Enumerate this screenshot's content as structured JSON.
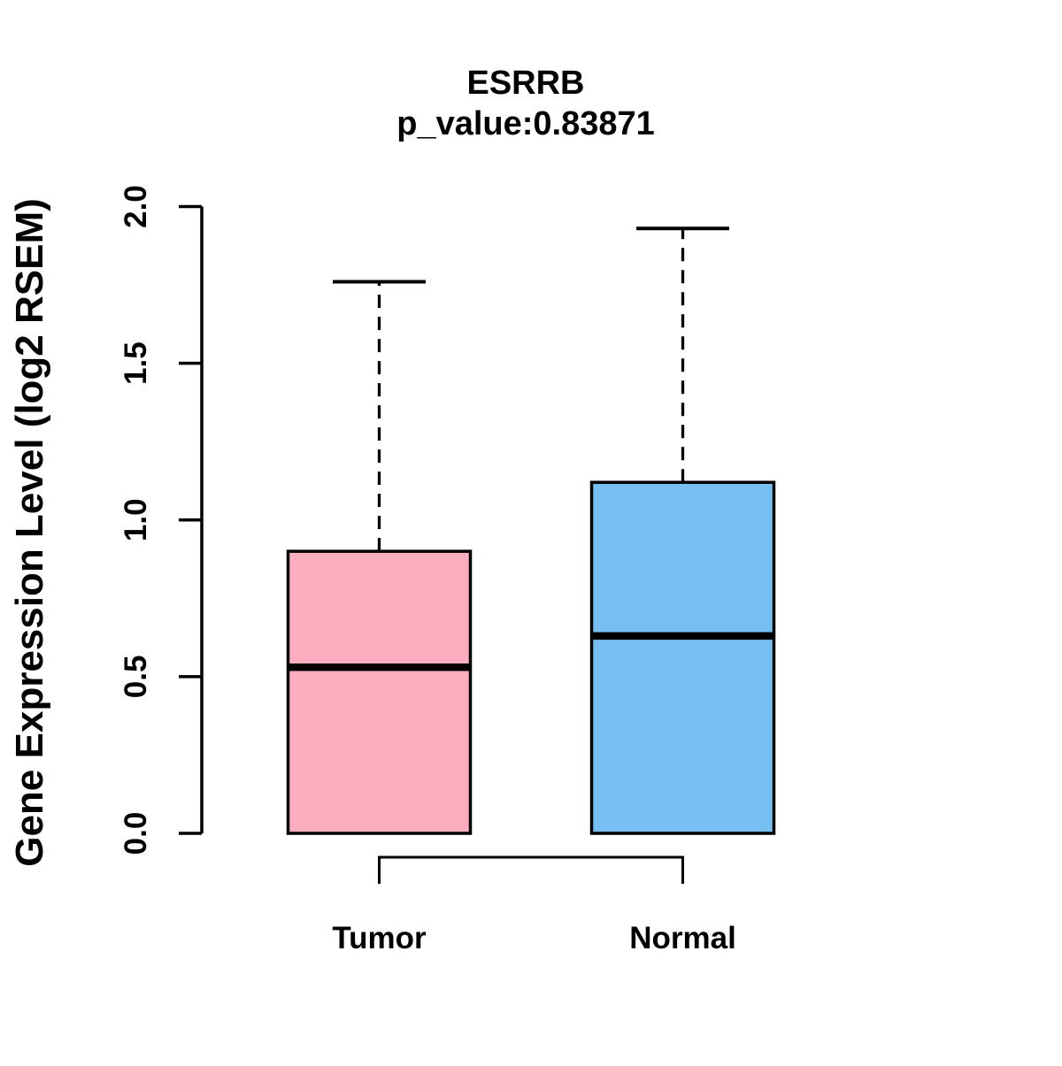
{
  "chart_data": {
    "type": "boxplot",
    "title": "ESRRB",
    "subtitle": "p_value:0.83871",
    "ylabel": "Gene Expression Level (log2 RSEM)",
    "xlabel": "",
    "ylim": [
      0.0,
      2.0
    ],
    "ytick_labels": [
      "0.0",
      "0.5",
      "1.0",
      "1.5",
      "2.0"
    ],
    "ytick_values": [
      0.0,
      0.5,
      1.0,
      1.5,
      2.0
    ],
    "grid": "off",
    "legend": "none",
    "categories": [
      "Tumor",
      "Normal"
    ],
    "series": [
      {
        "name": "Tumor",
        "lower_whisker": 0.0,
        "q1": 0.0,
        "median": 0.53,
        "q3": 0.9,
        "upper_whisker": 1.76,
        "fill_color": "#FCAEBE"
      },
      {
        "name": "Normal",
        "lower_whisker": 0.0,
        "q1": 0.0,
        "median": 0.63,
        "q3": 1.12,
        "upper_whisker": 1.93,
        "fill_color": "#76BFF2"
      }
    ],
    "comparison_bracket": {
      "from": "Tumor",
      "to": "Normal"
    },
    "stroke_color": "#000000",
    "background_color": "#ffffff"
  }
}
